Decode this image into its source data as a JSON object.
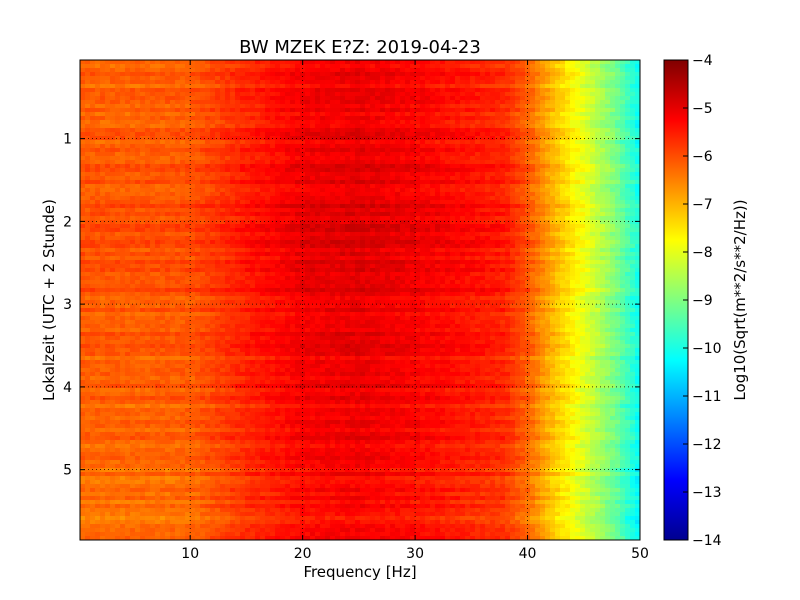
{
  "chart_data": {
    "type": "heatmap",
    "title": "BW MZEK E?Z: 2019-04-23",
    "xlabel": "Frequency [Hz]",
    "ylabel": "Lokalzeit (UTC + 2 Stunde)",
    "xlim": [
      0.2,
      50
    ],
    "ylim": [
      5.85,
      0.05
    ],
    "x_ticks": [
      10,
      20,
      30,
      40,
      50
    ],
    "y_ticks": [
      1,
      2,
      3,
      4,
      5
    ],
    "grid": true,
    "colorbar": {
      "label": "Log10(Sqrt(m**2/s**2/Hz))",
      "range": [
        -14,
        -4
      ],
      "ticks": [
        -4,
        -5,
        -6,
        -7,
        -8,
        -9,
        -10,
        -11,
        -12,
        -13,
        -14
      ],
      "colormap": "jet"
    },
    "profile": {
      "frequency_hz": [
        0.2,
        5,
        10,
        15,
        20,
        25,
        30,
        35,
        38,
        40,
        42,
        44,
        46,
        48,
        50
      ],
      "log10_amplitude": [
        -6.0,
        -6.0,
        -5.95,
        -5.4,
        -5.0,
        -4.9,
        -5.05,
        -5.3,
        -5.45,
        -6.0,
        -6.8,
        -7.5,
        -8.2,
        -9.0,
        -10.0
      ]
    },
    "colors": {
      "jet": [
        "#00008f",
        "#0000ff",
        "#0080ff",
        "#00ffff",
        "#80ff80",
        "#ffff00",
        "#ff8000",
        "#ff0000",
        "#800000"
      ]
    }
  }
}
